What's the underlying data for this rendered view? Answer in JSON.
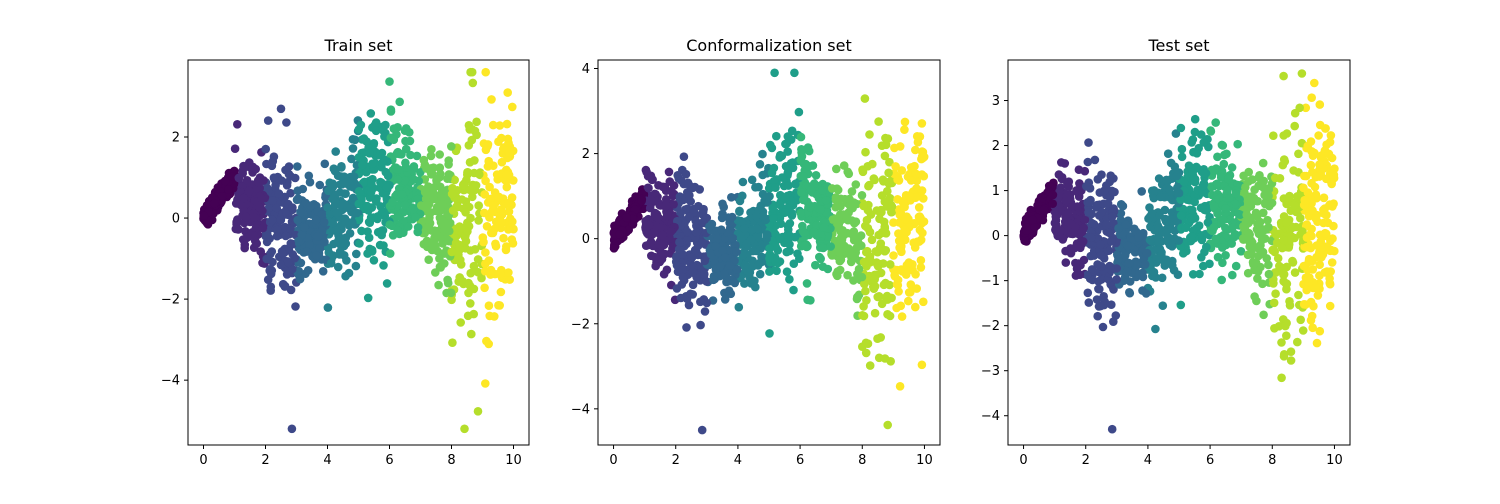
{
  "chart_data": [
    {
      "type": "scatter",
      "title": "Train set",
      "xlabel": "",
      "ylabel": "",
      "xlim": [
        -0.5,
        10.5
      ],
      "ylim": [
        -5.6,
        3.9
      ],
      "xticks": [
        0,
        2,
        4,
        6,
        8,
        10
      ],
      "xtick_labels": [
        "0",
        "2",
        "4",
        "6",
        "8",
        "10"
      ],
      "yticks": [
        -4,
        -2,
        0,
        2
      ],
      "ytick_labels": [
        "−4",
        "−2",
        "0",
        "2"
      ],
      "y_min_extreme": -5.2,
      "spread_scale": 1.0,
      "colors": [
        "#440154",
        "#482878",
        "#3e4989",
        "#31688e",
        "#26828e",
        "#1f9e89",
        "#35b779",
        "#6ece58",
        "#b5de2b",
        "#fde725"
      ],
      "n_points": 1400
    },
    {
      "type": "scatter",
      "title": "Conformalization set",
      "xlabel": "",
      "ylabel": "",
      "xlim": [
        -0.5,
        10.5
      ],
      "ylim": [
        -4.85,
        4.2
      ],
      "xticks": [
        0,
        2,
        4,
        6,
        8,
        10
      ],
      "xtick_labels": [
        "0",
        "2",
        "4",
        "6",
        "8",
        "10"
      ],
      "yticks": [
        -4,
        -2,
        0,
        2,
        4
      ],
      "ytick_labels": [
        "−4",
        "−2",
        "0",
        "2",
        "4"
      ],
      "y_min_extreme": -4.5,
      "spread_scale": 0.95,
      "colors": [
        "#440154",
        "#482878",
        "#3e4989",
        "#31688e",
        "#26828e",
        "#1f9e89",
        "#35b779",
        "#6ece58",
        "#b5de2b",
        "#fde725"
      ],
      "n_points": 1400
    },
    {
      "type": "scatter",
      "title": "Test set",
      "xlabel": "",
      "ylabel": "",
      "xlim": [
        -0.5,
        10.5
      ],
      "ylim": [
        -4.65,
        3.9
      ],
      "xticks": [
        0,
        2,
        4,
        6,
        8,
        10
      ],
      "xtick_labels": [
        "0",
        "2",
        "4",
        "6",
        "8",
        "10"
      ],
      "yticks": [
        -4,
        -3,
        -2,
        -1,
        0,
        1,
        2,
        3
      ],
      "ytick_labels": [
        "−4",
        "−3",
        "−2",
        "−1",
        "0",
        "1",
        "2",
        "3"
      ],
      "y_min_extreme": -4.3,
      "spread_scale": 0.9,
      "colors": [
        "#440154",
        "#482878",
        "#3e4989",
        "#31688e",
        "#26828e",
        "#1f9e89",
        "#35b779",
        "#6ece58",
        "#b5de2b",
        "#fde725"
      ],
      "n_points": 1400
    }
  ]
}
